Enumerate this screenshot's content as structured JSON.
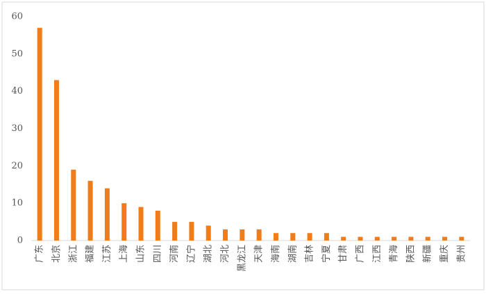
{
  "chart_data": {
    "type": "bar",
    "categories": [
      "广东",
      "北京",
      "浙江",
      "福建",
      "江苏",
      "上海",
      "山东",
      "四川",
      "河南",
      "辽宁",
      "湖北",
      "河北",
      "黑龙江",
      "天津",
      "海南",
      "湖南",
      "吉林",
      "宁夏",
      "甘肃",
      "广西",
      "江西",
      "青海",
      "陕西",
      "新疆",
      "重庆",
      "贵州"
    ],
    "values": [
      57,
      43,
      19,
      16,
      14,
      10,
      9,
      8,
      5,
      5,
      4,
      3,
      3,
      3,
      2,
      2,
      2,
      2,
      1,
      1,
      1,
      1,
      1,
      1,
      1,
      1
    ],
    "color": "#f07c1a",
    "ylim": [
      0,
      60
    ],
    "yticks": [
      0,
      10,
      20,
      30,
      40,
      50,
      60
    ],
    "grid": false
  }
}
